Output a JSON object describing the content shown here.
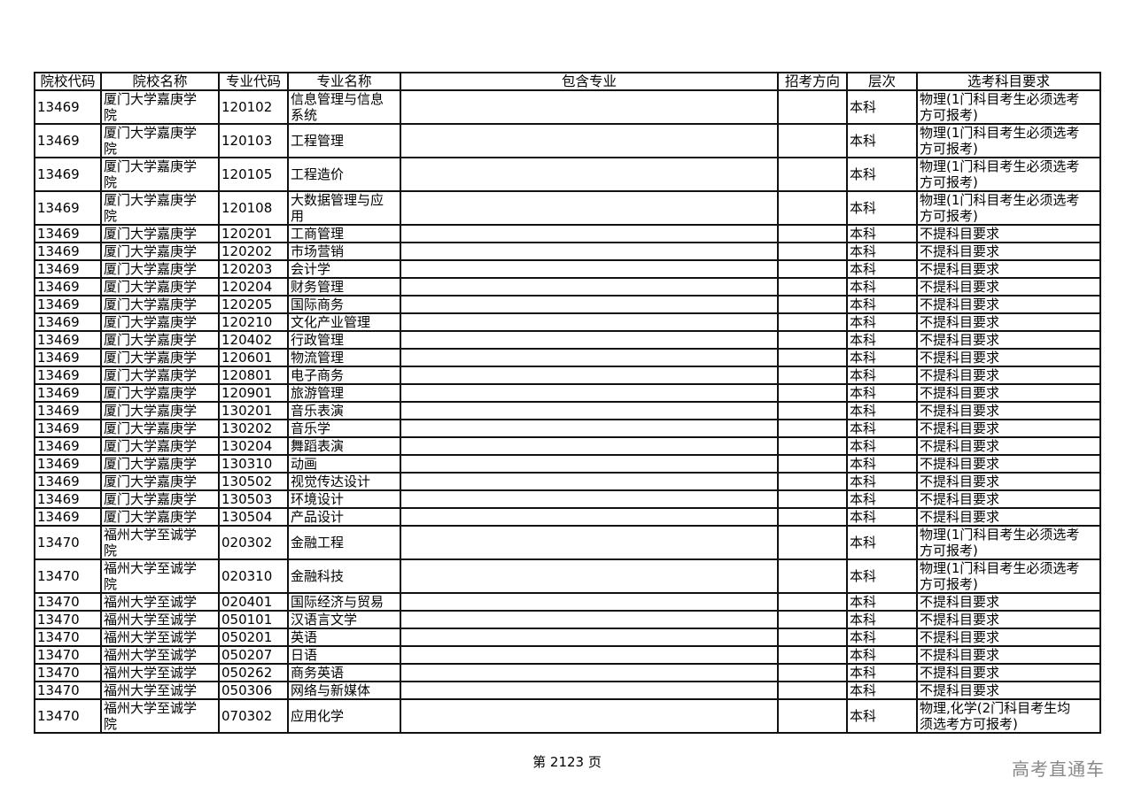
{
  "table": {
    "headers": [
      "院校代码",
      "院校名称",
      "专业代码",
      "专业名称",
      "包含专业",
      "招考方向",
      "层次",
      "选考科目要求"
    ],
    "rows": [
      [
        "13469",
        "厦门大学嘉庚学\n院",
        "120102",
        "信息管理与信息\n系统",
        "",
        "",
        "本科",
        "物理(1门科目考生必须选考\n方可报考)"
      ],
      [
        "13469",
        "厦门大学嘉庚学\n院",
        "120103",
        "工程管理",
        "",
        "",
        "本科",
        "物理(1门科目考生必须选考\n方可报考)"
      ],
      [
        "13469",
        "厦门大学嘉庚学\n院",
        "120105",
        "工程造价",
        "",
        "",
        "本科",
        "物理(1门科目考生必须选考\n方可报考)"
      ],
      [
        "13469",
        "厦门大学嘉庚学\n院",
        "120108",
        "大数据管理与应\n用",
        "",
        "",
        "本科",
        "物理(1门科目考生必须选考\n方可报考)"
      ],
      [
        "13469",
        "厦门大学嘉庚学",
        "120201",
        "工商管理",
        "",
        "",
        "本科",
        "不提科目要求"
      ],
      [
        "13469",
        "厦门大学嘉庚学",
        "120202",
        "市场营销",
        "",
        "",
        "本科",
        "不提科目要求"
      ],
      [
        "13469",
        "厦门大学嘉庚学",
        "120203",
        "会计学",
        "",
        "",
        "本科",
        "不提科目要求"
      ],
      [
        "13469",
        "厦门大学嘉庚学",
        "120204",
        "财务管理",
        "",
        "",
        "本科",
        "不提科目要求"
      ],
      [
        "13469",
        "厦门大学嘉庚学",
        "120205",
        "国际商务",
        "",
        "",
        "本科",
        "不提科目要求"
      ],
      [
        "13469",
        "厦门大学嘉庚学",
        "120210",
        "文化产业管理",
        "",
        "",
        "本科",
        "不提科目要求"
      ],
      [
        "13469",
        "厦门大学嘉庚学",
        "120402",
        "行政管理",
        "",
        "",
        "本科",
        "不提科目要求"
      ],
      [
        "13469",
        "厦门大学嘉庚学",
        "120601",
        "物流管理",
        "",
        "",
        "本科",
        "不提科目要求"
      ],
      [
        "13469",
        "厦门大学嘉庚学",
        "120801",
        "电子商务",
        "",
        "",
        "本科",
        "不提科目要求"
      ],
      [
        "13469",
        "厦门大学嘉庚学",
        "120901",
        "旅游管理",
        "",
        "",
        "本科",
        "不提科目要求"
      ],
      [
        "13469",
        "厦门大学嘉庚学",
        "130201",
        "音乐表演",
        "",
        "",
        "本科",
        "不提科目要求"
      ],
      [
        "13469",
        "厦门大学嘉庚学",
        "130202",
        "音乐学",
        "",
        "",
        "本科",
        "不提科目要求"
      ],
      [
        "13469",
        "厦门大学嘉庚学",
        "130204",
        "舞蹈表演",
        "",
        "",
        "本科",
        "不提科目要求"
      ],
      [
        "13469",
        "厦门大学嘉庚学",
        "130310",
        "动画",
        "",
        "",
        "本科",
        "不提科目要求"
      ],
      [
        "13469",
        "厦门大学嘉庚学",
        "130502",
        "视觉传达设计",
        "",
        "",
        "本科",
        "不提科目要求"
      ],
      [
        "13469",
        "厦门大学嘉庚学",
        "130503",
        "环境设计",
        "",
        "",
        "本科",
        "不提科目要求"
      ],
      [
        "13469",
        "厦门大学嘉庚学",
        "130504",
        "产品设计",
        "",
        "",
        "本科",
        "不提科目要求"
      ],
      [
        "13470",
        "福州大学至诚学\n院",
        "020302",
        "金融工程",
        "",
        "",
        "本科",
        "物理(1门科目考生必须选考\n方可报考)"
      ],
      [
        "13470",
        "福州大学至诚学\n院",
        "020310",
        "金融科技",
        "",
        "",
        "本科",
        "物理(1门科目考生必须选考\n方可报考)"
      ],
      [
        "13470",
        "福州大学至诚学",
        "020401",
        "国际经济与贸易",
        "",
        "",
        "本科",
        "不提科目要求"
      ],
      [
        "13470",
        "福州大学至诚学",
        "050101",
        "汉语言文学",
        "",
        "",
        "本科",
        "不提科目要求"
      ],
      [
        "13470",
        "福州大学至诚学",
        "050201",
        "英语",
        "",
        "",
        "本科",
        "不提科目要求"
      ],
      [
        "13470",
        "福州大学至诚学",
        "050207",
        "日语",
        "",
        "",
        "本科",
        "不提科目要求"
      ],
      [
        "13470",
        "福州大学至诚学",
        "050262",
        "商务英语",
        "",
        "",
        "本科",
        "不提科目要求"
      ],
      [
        "13470",
        "福州大学至诚学",
        "050306",
        "网络与新媒体",
        "",
        "",
        "本科",
        "不提科目要求"
      ],
      [
        "13470",
        "福州大学至诚学\n院",
        "070302",
        "应用化学",
        "",
        "",
        "本科",
        "物理,化学(2门科目考生均\n须选考方可报考)"
      ]
    ]
  },
  "footer": {
    "page_label": "第 2123 页"
  },
  "watermark": "高考直通车"
}
